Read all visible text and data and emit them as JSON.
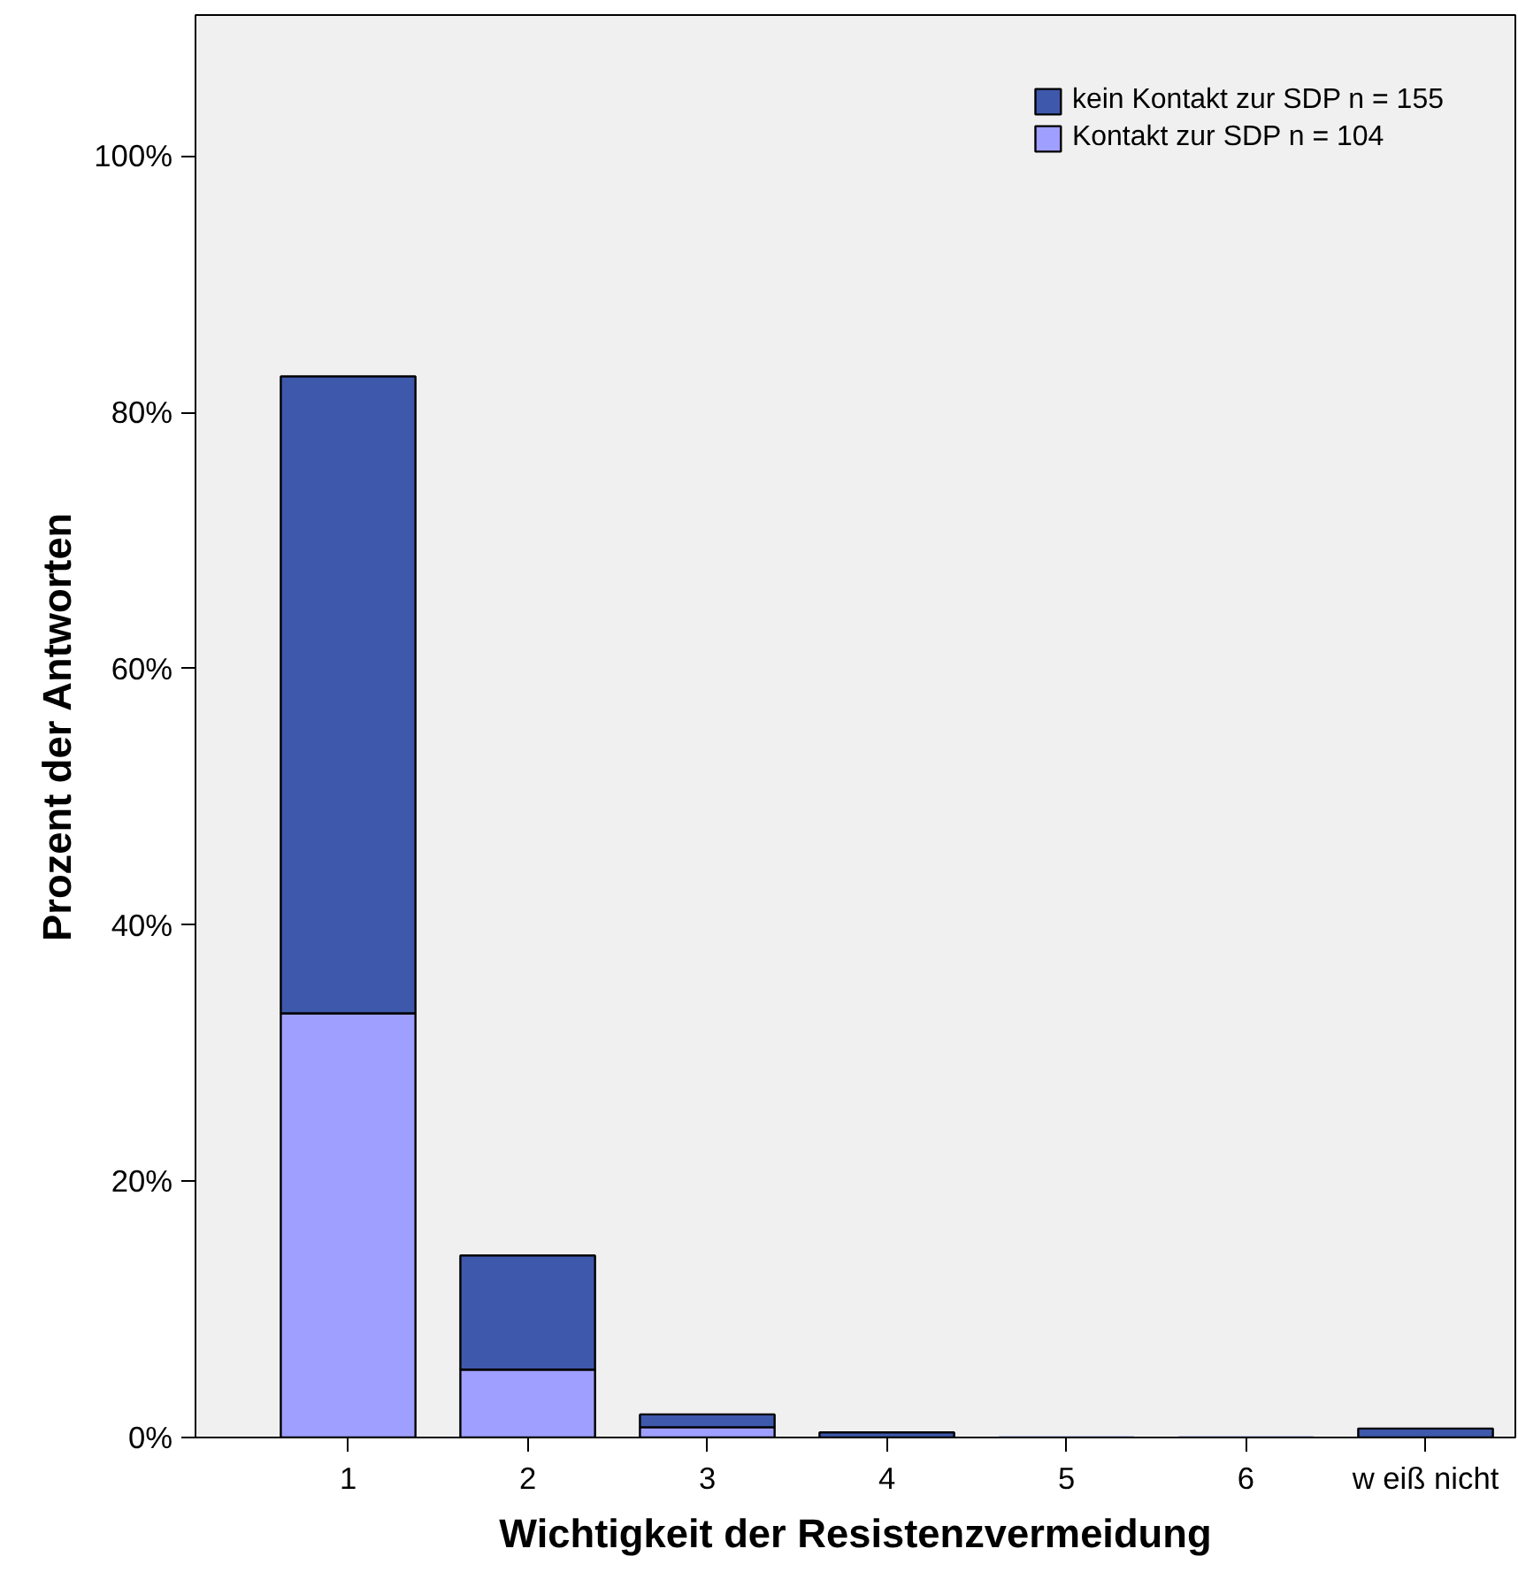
{
  "chart_data": {
    "type": "bar",
    "stacked": true,
    "xlabel": "Wichtigkeit der Resistenzvermeidung",
    "ylabel": "Prozent der Antworten",
    "categories": [
      "1",
      "2",
      "3",
      "4",
      "5",
      "6",
      "w eiß nicht"
    ],
    "series": [
      {
        "name": "Kontakt zur SDP n = 104",
        "color": "#9f9fff",
        "values": [
          33.1,
          5.3,
          0.8,
          0,
          0,
          0,
          0
        ]
      },
      {
        "name": "kein Kontakt zur SDP n = 155",
        "color": "#3e58ac",
        "values": [
          49.7,
          8.9,
          1.0,
          0.4,
          0,
          0,
          0.7
        ]
      }
    ],
    "ylim": [
      0,
      111
    ],
    "yticks": [
      {
        "value": 0,
        "label": "0%"
      },
      {
        "value": 20,
        "label": "20%"
      },
      {
        "value": 40,
        "label": "40%"
      },
      {
        "value": 60,
        "label": "60%"
      },
      {
        "value": 80,
        "label": "80%"
      },
      {
        "value": 100,
        "label": "100%"
      }
    ],
    "grid": false,
    "legend": "top right"
  }
}
